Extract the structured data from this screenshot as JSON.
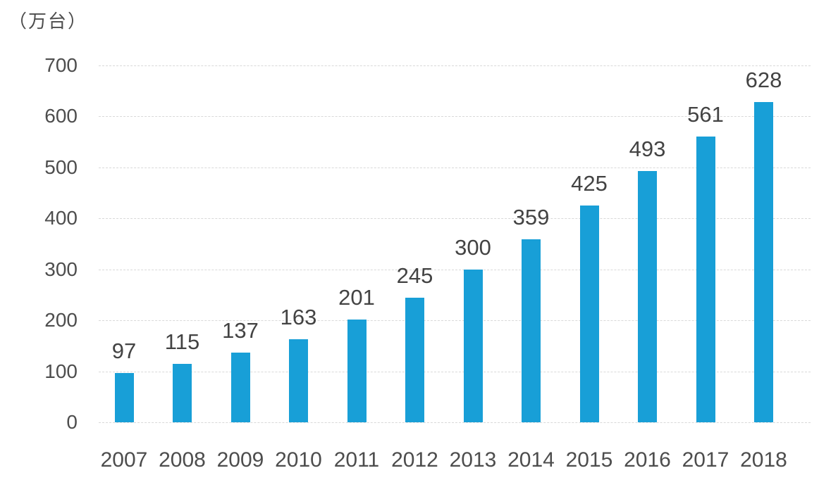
{
  "chart_data": {
    "type": "bar",
    "title": "",
    "unit_label": "（万台）",
    "categories": [
      "2007",
      "2008",
      "2009",
      "2010",
      "2011",
      "2012",
      "2013",
      "2014",
      "2015",
      "2016",
      "2017",
      "2018"
    ],
    "values": [
      97,
      115,
      137,
      163,
      201,
      245,
      300,
      359,
      425,
      493,
      561,
      628
    ],
    "ylim": [
      0,
      700
    ],
    "ytick_interval": 100,
    "grid": true,
    "legend": "none",
    "colors": {
      "bar": "#189fd7",
      "axis_text": "#4d4d4d",
      "value_text": "#434343",
      "gridline": "#d9d9d9",
      "background": "#ffffff"
    }
  }
}
